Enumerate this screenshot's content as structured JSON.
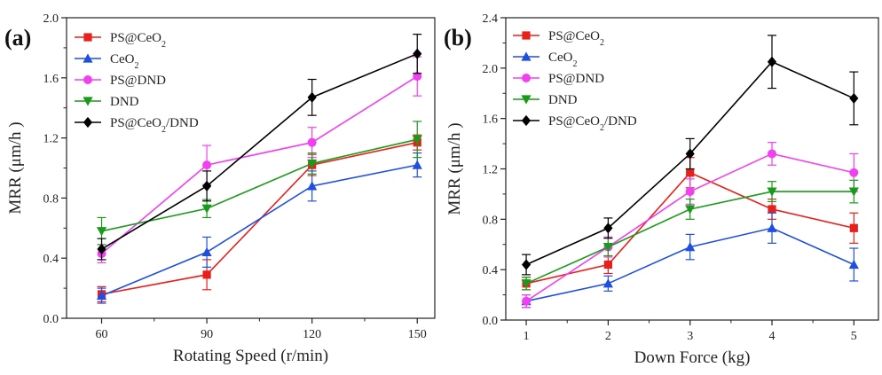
{
  "chart_data": [
    {
      "type": "line",
      "panel_label": "(a)",
      "xlabel": "Rotating Speed (r/min)",
      "ylabel": "MRR (μm/h )",
      "x": [
        60,
        90,
        120,
        150
      ],
      "x_ticks": [
        "60",
        "90",
        "120",
        "150"
      ],
      "xlim": [
        50,
        155
      ],
      "ylim": [
        0,
        2.0
      ],
      "y_ticks": [
        "0.0",
        "0.4",
        "0.8",
        "1.2",
        "1.6",
        "2.0"
      ],
      "legend_position": "top-left",
      "series": [
        {
          "name": "PS@CeO₂",
          "color": "#e8201c",
          "marker": "square",
          "values": [
            0.16,
            0.29,
            1.02,
            1.17
          ],
          "errors": [
            0.05,
            0.1,
            0.07,
            0.05
          ]
        },
        {
          "name": "CeO₂",
          "color": "#1f4fe0",
          "marker": "triangle-up",
          "values": [
            0.15,
            0.44,
            0.88,
            1.02
          ],
          "errors": [
            0.05,
            0.1,
            0.1,
            0.08
          ]
        },
        {
          "name": "PS@DND",
          "color": "#f040f0",
          "marker": "circle",
          "values": [
            0.43,
            1.02,
            1.17,
            1.61
          ],
          "errors": [
            0.06,
            0.13,
            0.1,
            0.13
          ]
        },
        {
          "name": "DND",
          "color": "#1a9a1a",
          "marker": "triangle-down",
          "values": [
            0.58,
            0.73,
            1.03,
            1.19
          ],
          "errors": [
            0.09,
            0.06,
            0.07,
            0.12
          ]
        },
        {
          "name": "PS@CeO₂/DND",
          "color": "#000000",
          "marker": "diamond",
          "values": [
            0.46,
            0.88,
            1.47,
            1.76
          ],
          "errors": [
            0.07,
            0.1,
            0.12,
            0.13
          ]
        }
      ]
    },
    {
      "type": "line",
      "panel_label": "(b)",
      "xlabel": "Down Force (kg)",
      "ylabel": "MRR (μm/h )",
      "x": [
        1,
        2,
        3,
        4,
        5
      ],
      "x_ticks": [
        "1",
        "2",
        "3",
        "4",
        "5"
      ],
      "xlim": [
        0.75,
        5.3
      ],
      "ylim": [
        0,
        2.4
      ],
      "y_ticks": [
        "0.0",
        "0.4",
        "0.8",
        "1.2",
        "1.6",
        "2.0",
        "2.4"
      ],
      "legend_position": "top-left",
      "series": [
        {
          "name": "PS@CeO₂",
          "color": "#e8201c",
          "marker": "square",
          "values": [
            0.29,
            0.44,
            1.17,
            0.88,
            0.73
          ],
          "errors": [
            0.05,
            0.07,
            0.12,
            0.08,
            0.12
          ]
        },
        {
          "name": "CeO₂",
          "color": "#1f4fe0",
          "marker": "triangle-up",
          "values": [
            0.15,
            0.29,
            0.58,
            0.73,
            0.44
          ],
          "errors": [
            0.05,
            0.06,
            0.1,
            0.12,
            0.13
          ]
        },
        {
          "name": "PS@DND",
          "color": "#f040f0",
          "marker": "circle",
          "values": [
            0.15,
            0.58,
            1.02,
            1.32,
            1.17
          ],
          "errors": [
            0.05,
            0.08,
            0.1,
            0.09,
            0.15
          ]
        },
        {
          "name": "DND",
          "color": "#1a9a1a",
          "marker": "triangle-down",
          "values": [
            0.29,
            0.58,
            0.88,
            1.02,
            1.02
          ],
          "errors": [
            0.05,
            0.07,
            0.08,
            0.08,
            0.09
          ]
        },
        {
          "name": "PS@CeO₂/DND",
          "color": "#000000",
          "marker": "diamond",
          "values": [
            0.44,
            0.73,
            1.32,
            2.05,
            1.76
          ],
          "errors": [
            0.08,
            0.08,
            0.12,
            0.21,
            0.21
          ]
        }
      ]
    }
  ]
}
